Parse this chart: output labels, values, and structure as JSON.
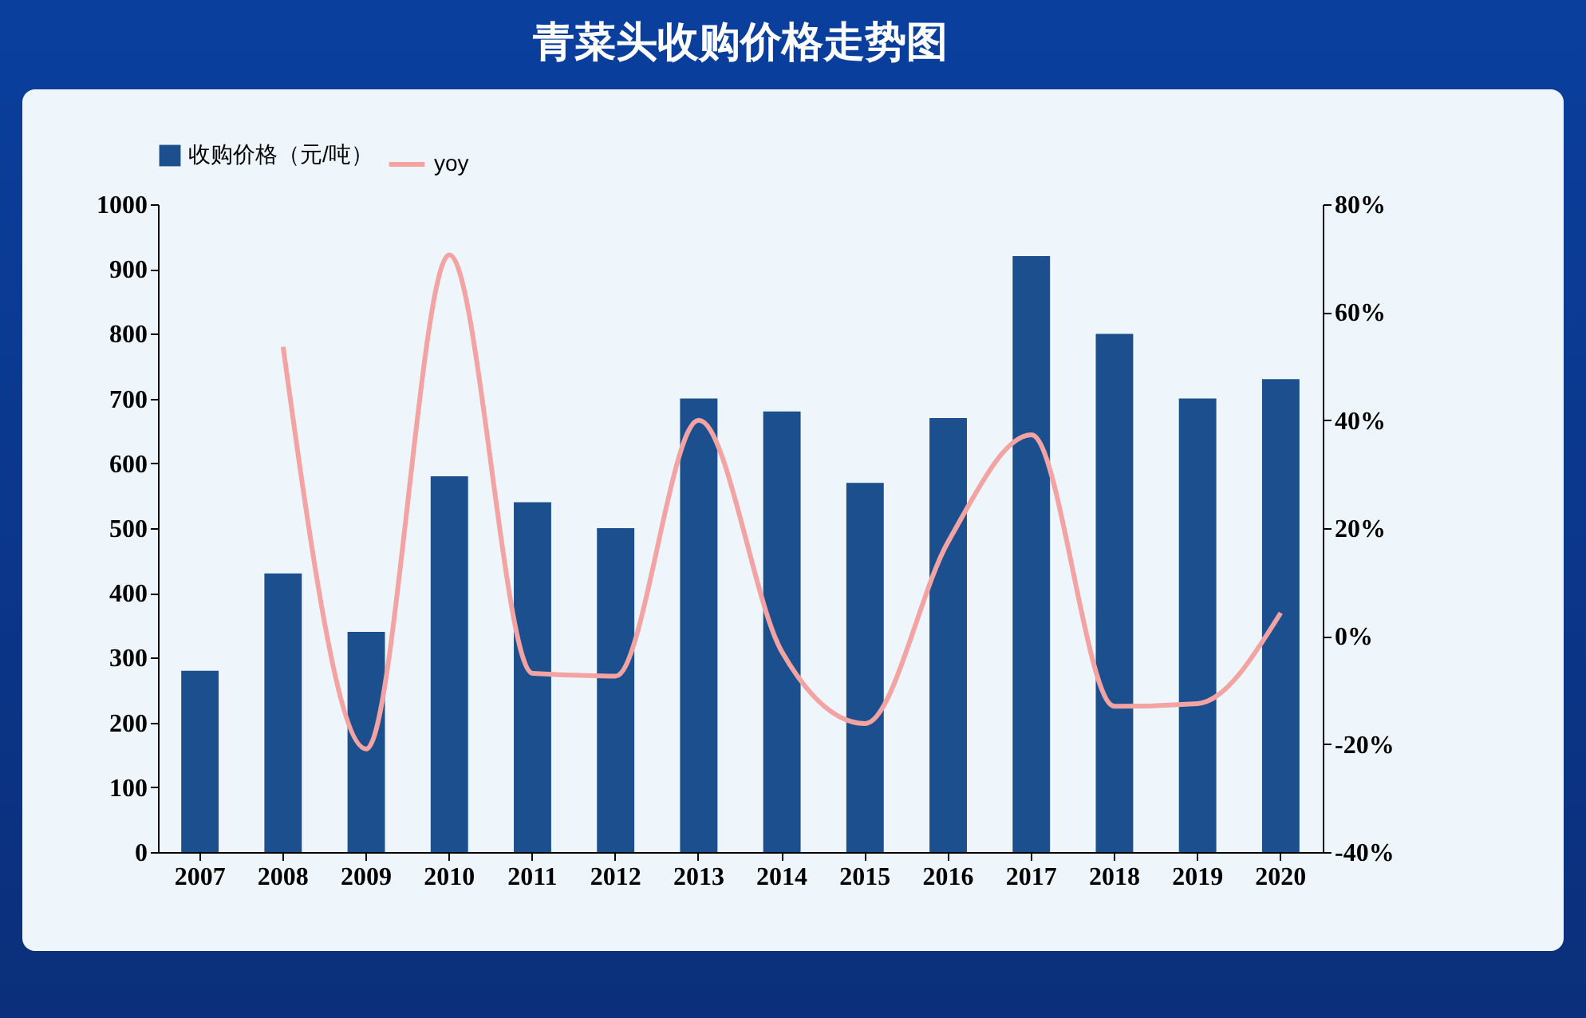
{
  "chart_data": {
    "type": "bar",
    "title": "青菜头收购价格走势图",
    "categories": [
      "2007",
      "2008",
      "2009",
      "2010",
      "2011",
      "2012",
      "2013",
      "2014",
      "2015",
      "2016",
      "2017",
      "2018",
      "2019",
      "2020"
    ],
    "series": [
      {
        "name": "收购价格（元/吨）",
        "color": "#1b4f8e",
        "values": [
          280,
          430,
          340,
          580,
          540,
          500,
          700,
          680,
          570,
          670,
          920,
          800,
          700,
          730
        ]
      },
      {
        "name": "yoy",
        "type": "line",
        "axis": "y2",
        "color": "#f4a3a3",
        "values": [
          null,
          53.6,
          -20.9,
          70.6,
          -6.9,
          -7.4,
          40.0,
          -2.9,
          -16.2,
          17.5,
          37.3,
          -13.0,
          -12.5,
          4.3
        ]
      }
    ],
    "ylim": [
      0,
      1000
    ],
    "yticks": [
      0,
      100,
      200,
      300,
      400,
      500,
      600,
      700,
      800,
      900,
      1000
    ],
    "y2lim": [
      -40,
      80
    ],
    "y2ticks": [
      {
        "value": -40,
        "label": "-40%"
      },
      {
        "value": -20,
        "label": "-20%"
      },
      {
        "value": 0,
        "label": "0%"
      },
      {
        "value": 20,
        "label": "20%"
      },
      {
        "value": 40,
        "label": "40%"
      },
      {
        "value": 60,
        "label": "60%"
      },
      {
        "value": 80,
        "label": "80%"
      }
    ],
    "legend": "top",
    "grid": false,
    "marker": "none",
    "line_style": "solid"
  }
}
